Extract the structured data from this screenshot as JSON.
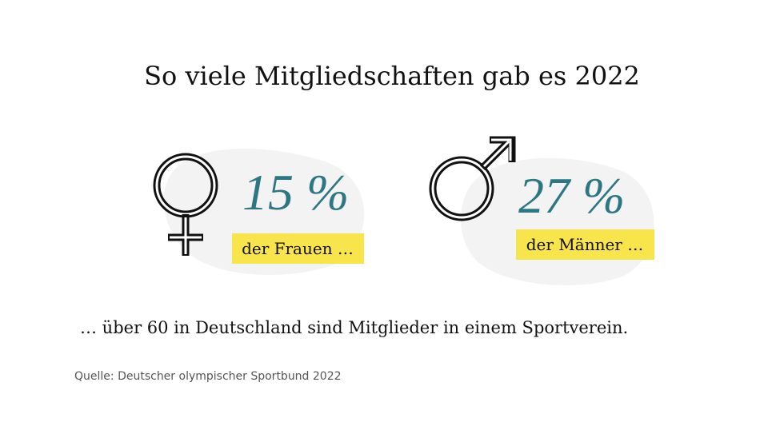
{
  "title": "So viele Mitgliedschaften gab es 2022",
  "groups": [
    {
      "value": "15 %",
      "label": "der Frauen …"
    },
    {
      "value": "27 %",
      "label": "der Männer …"
    }
  ],
  "footnote": "… über 60 in Deutschland sind Mitglieder in einem Sportverein.",
  "source": "Quelle:  Deutscher olympischer Sportbund 2022"
}
